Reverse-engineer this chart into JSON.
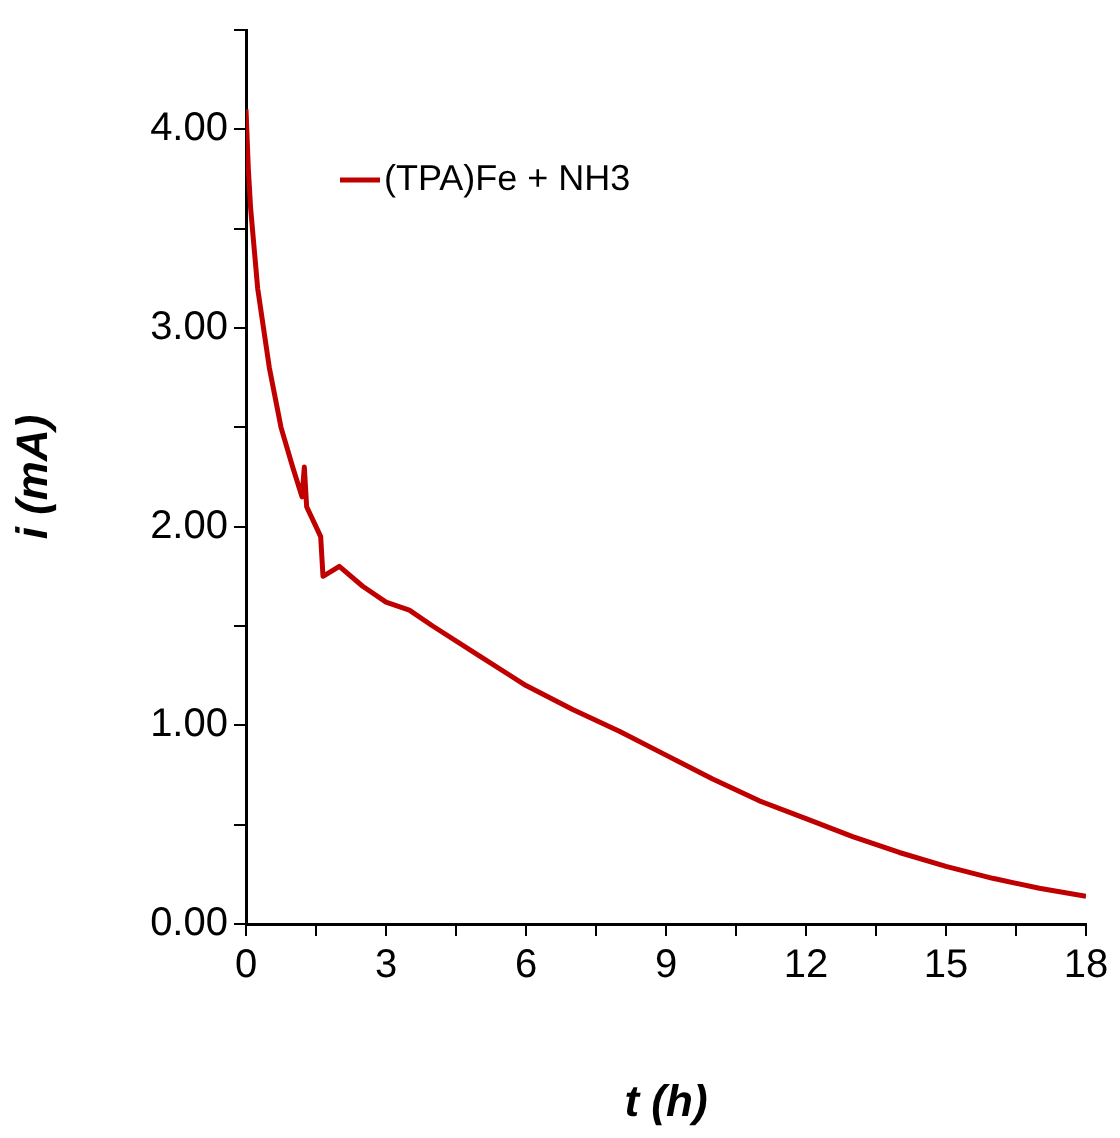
{
  "chart_data": {
    "type": "line",
    "xlabel": "t (h)",
    "ylabel": "i (mA)",
    "xlim": [
      0,
      18
    ],
    "ylim": [
      0,
      4.5
    ],
    "xticks": [
      0,
      {
        "value": 1.5,
        "label": null
      },
      3,
      {
        "value": 4.5,
        "label": null
      },
      6,
      {
        "value": 7.5,
        "label": null
      },
      9,
      {
        "value": 10.5,
        "label": null
      },
      12,
      {
        "value": 13.5,
        "label": null
      },
      15,
      {
        "value": 16.5,
        "label": null
      },
      18
    ],
    "yticks": [
      {
        "value": 0,
        "label": "0.00"
      },
      {
        "value": 0.5,
        "label": null
      },
      {
        "value": 1,
        "label": "1.00"
      },
      {
        "value": 1.5,
        "label": null
      },
      {
        "value": 2,
        "label": "2.00"
      },
      {
        "value": 2.5,
        "label": null
      },
      {
        "value": 3,
        "label": "3.00"
      },
      {
        "value": 3.5,
        "label": null
      },
      {
        "value": 4,
        "label": "4.00"
      },
      {
        "value": 4.5,
        "label": null
      }
    ],
    "grid": false,
    "legend": "top left",
    "marker": "none",
    "line_style": "solid",
    "series": [
      {
        "name": "(TPA)Fe + NH3",
        "color": "#c00000",
        "x": [
          0,
          0.05,
          0.1,
          0.25,
          0.5,
          0.75,
          1,
          1.2,
          1.25,
          1.3,
          1.5,
          1.6,
          1.65,
          2,
          2.5,
          3,
          3.5,
          4,
          5,
          6,
          7,
          8,
          9,
          10,
          11,
          12,
          13,
          14,
          15,
          16,
          17,
          18
        ],
        "values": [
          4.1,
          3.8,
          3.6,
          3.2,
          2.8,
          2.5,
          2.3,
          2.15,
          2.3,
          2.1,
          2.0,
          1.95,
          1.75,
          1.8,
          1.7,
          1.62,
          1.58,
          1.5,
          1.35,
          1.2,
          1.08,
          0.97,
          0.85,
          0.73,
          0.62,
          0.53,
          0.44,
          0.36,
          0.29,
          0.23,
          0.18,
          0.14
        ]
      }
    ]
  }
}
